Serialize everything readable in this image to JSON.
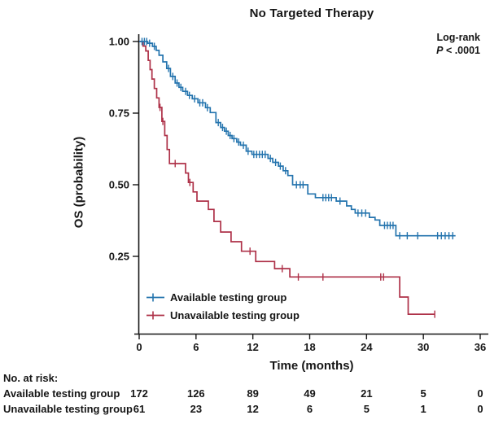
{
  "chart_data": {
    "type": "line",
    "subtype": "kaplan-meier-step",
    "title": "No Targeted Therapy",
    "xlabel": "Time (months)",
    "ylabel": "OS (probability)",
    "xlim": [
      0,
      36
    ],
    "ylim": [
      0,
      1.0
    ],
    "x_ticks": [
      0,
      6,
      12,
      18,
      24,
      30,
      36
    ],
    "y_ticks": [
      {
        "value": 1.0,
        "label": "1.00"
      },
      {
        "value": 0.75,
        "label": "0.75"
      },
      {
        "value": 0.5,
        "label": "0.50"
      },
      {
        "value": 0.25,
        "label": "0.25"
      }
    ],
    "grid": false,
    "legend_position": "lower-left-inside",
    "annotation": {
      "test_name": "Log-rank",
      "p_symbol": "P",
      "p_rest": " < .0001"
    },
    "series": [
      {
        "name": "Available testing group",
        "color": "#2474ae",
        "points": [
          [
            0,
            1.0
          ],
          [
            0.9,
            0.994
          ],
          [
            1.4,
            0.983
          ],
          [
            1.8,
            0.969
          ],
          [
            2.1,
            0.952
          ],
          [
            2.5,
            0.929
          ],
          [
            2.9,
            0.906
          ],
          [
            3.3,
            0.878
          ],
          [
            3.8,
            0.855
          ],
          [
            4.2,
            0.84
          ],
          [
            4.6,
            0.826
          ],
          [
            5.1,
            0.812
          ],
          [
            5.6,
            0.8
          ],
          [
            6.2,
            0.786
          ],
          [
            7.0,
            0.769
          ],
          [
            7.5,
            0.752
          ],
          [
            8.1,
            0.717
          ],
          [
            8.6,
            0.7
          ],
          [
            9.0,
            0.687
          ],
          [
            9.4,
            0.672
          ],
          [
            9.8,
            0.661
          ],
          [
            10.3,
            0.649
          ],
          [
            10.7,
            0.638
          ],
          [
            11.3,
            0.617
          ],
          [
            11.9,
            0.606
          ],
          [
            13.6,
            0.592
          ],
          [
            14.1,
            0.578
          ],
          [
            14.7,
            0.565
          ],
          [
            15.2,
            0.549
          ],
          [
            15.7,
            0.532
          ],
          [
            16.2,
            0.5
          ],
          [
            17.8,
            0.468
          ],
          [
            18.6,
            0.455
          ],
          [
            20.8,
            0.443
          ],
          [
            21.9,
            0.426
          ],
          [
            22.4,
            0.414
          ],
          [
            22.8,
            0.401
          ],
          [
            24.3,
            0.386
          ],
          [
            24.9,
            0.377
          ],
          [
            25.4,
            0.358
          ],
          [
            27.1,
            0.322
          ],
          [
            33.4,
            0.322
          ]
        ],
        "censors": [
          [
            0.3,
            1.0
          ],
          [
            0.55,
            1.0
          ],
          [
            0.8,
            1.0
          ],
          [
            1.1,
            0.994
          ],
          [
            1.6,
            0.983
          ],
          [
            3.1,
            0.906
          ],
          [
            3.55,
            0.878
          ],
          [
            4.0,
            0.855
          ],
          [
            4.4,
            0.84
          ],
          [
            4.9,
            0.826
          ],
          [
            5.3,
            0.812
          ],
          [
            5.85,
            0.8
          ],
          [
            6.4,
            0.786
          ],
          [
            6.7,
            0.786
          ],
          [
            7.2,
            0.769
          ],
          [
            8.35,
            0.717
          ],
          [
            8.8,
            0.7
          ],
          [
            9.2,
            0.687
          ],
          [
            9.6,
            0.672
          ],
          [
            10.0,
            0.661
          ],
          [
            10.5,
            0.649
          ],
          [
            11.0,
            0.638
          ],
          [
            11.5,
            0.617
          ],
          [
            12.1,
            0.606
          ],
          [
            12.4,
            0.606
          ],
          [
            12.7,
            0.606
          ],
          [
            13.0,
            0.606
          ],
          [
            13.3,
            0.606
          ],
          [
            13.85,
            0.592
          ],
          [
            14.4,
            0.578
          ],
          [
            14.9,
            0.565
          ],
          [
            15.45,
            0.549
          ],
          [
            16.6,
            0.5
          ],
          [
            17.0,
            0.5
          ],
          [
            17.3,
            0.5
          ],
          [
            19.4,
            0.455
          ],
          [
            19.7,
            0.455
          ],
          [
            20.0,
            0.455
          ],
          [
            20.3,
            0.455
          ],
          [
            21.2,
            0.443
          ],
          [
            23.1,
            0.401
          ],
          [
            23.5,
            0.401
          ],
          [
            23.9,
            0.401
          ],
          [
            25.9,
            0.358
          ],
          [
            26.2,
            0.358
          ],
          [
            26.5,
            0.358
          ],
          [
            26.8,
            0.358
          ],
          [
            27.5,
            0.322
          ],
          [
            28.3,
            0.322
          ],
          [
            29.4,
            0.322
          ],
          [
            31.5,
            0.322
          ],
          [
            31.9,
            0.322
          ],
          [
            32.3,
            0.322
          ],
          [
            32.7,
            0.322
          ],
          [
            33.1,
            0.322
          ]
        ]
      },
      {
        "name": "Unavailable testing group",
        "color": "#ae3148",
        "points": [
          [
            0,
            1.0
          ],
          [
            0.4,
            0.984
          ],
          [
            0.7,
            0.967
          ],
          [
            0.95,
            0.934
          ],
          [
            1.15,
            0.902
          ],
          [
            1.35,
            0.869
          ],
          [
            1.6,
            0.836
          ],
          [
            1.85,
            0.803
          ],
          [
            2.1,
            0.77
          ],
          [
            2.4,
            0.721
          ],
          [
            2.7,
            0.672
          ],
          [
            2.95,
            0.623
          ],
          [
            3.2,
            0.574
          ],
          [
            4.9,
            0.541
          ],
          [
            5.2,
            0.508
          ],
          [
            5.7,
            0.475
          ],
          [
            6.1,
            0.443
          ],
          [
            7.3,
            0.414
          ],
          [
            7.9,
            0.372
          ],
          [
            8.6,
            0.335
          ],
          [
            9.7,
            0.301
          ],
          [
            10.8,
            0.268
          ],
          [
            12.3,
            0.232
          ],
          [
            14.3,
            0.207
          ],
          [
            15.9,
            0.178
          ],
          [
            27.5,
            0.108
          ],
          [
            28.4,
            0.048
          ],
          [
            31.2,
            0.048
          ]
        ],
        "censors": [
          [
            2.2,
            0.77
          ],
          [
            2.5,
            0.721
          ],
          [
            3.8,
            0.574
          ],
          [
            5.35,
            0.508
          ],
          [
            11.7,
            0.268
          ],
          [
            15.1,
            0.207
          ],
          [
            16.8,
            0.178
          ],
          [
            19.4,
            0.178
          ],
          [
            25.5,
            0.178
          ],
          [
            25.8,
            0.178
          ],
          [
            31.2,
            0.048
          ]
        ]
      }
    ],
    "legend": [
      {
        "label": "Available testing group",
        "color": "#2474ae"
      },
      {
        "label": "Unavailable testing group",
        "color": "#ae3148"
      }
    ],
    "risk_table": {
      "heading": "No. at risk:",
      "time_points": [
        0,
        6,
        12,
        18,
        24,
        30,
        36
      ],
      "rows": [
        {
          "label": "Available testing group",
          "counts": [
            "172",
            "126",
            "89",
            "49",
            "21",
            "5",
            "0"
          ]
        },
        {
          "label": "Unavailable testing group",
          "counts": [
            "61",
            "23",
            "12",
            "6",
            "5",
            "1",
            "0"
          ]
        }
      ]
    },
    "axis_color": "#161616"
  }
}
